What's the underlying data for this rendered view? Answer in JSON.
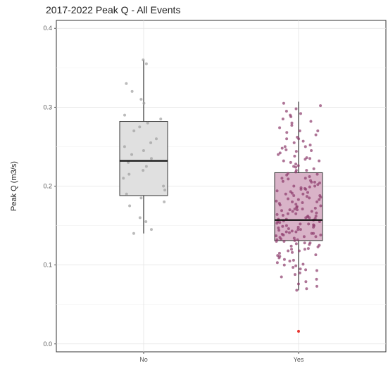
{
  "chart_data": {
    "type": "box",
    "title": "2017-2022 Peak Q - All Events",
    "xlabel": "",
    "ylabel": "Peak Q (m3/s)",
    "ylim": [
      -0.01,
      0.41
    ],
    "y_ticks": [
      0.0,
      0.1,
      0.2,
      0.3,
      0.4
    ],
    "y_tick_labels": [
      "0.0",
      "0.1",
      "0.2",
      "0.3",
      "0.4"
    ],
    "categories": [
      "No",
      "Yes"
    ],
    "grid": true,
    "legend": "none",
    "boxes": [
      {
        "category": "No",
        "whisker_low": 0.14,
        "q1": 0.188,
        "median": 0.232,
        "q3": 0.282,
        "whisker_high": 0.36,
        "fill": "#e0e0e0",
        "point_color": "#9e9e9e",
        "points": [
          0.36,
          0.355,
          0.33,
          0.32,
          0.31,
          0.305,
          0.29,
          0.285,
          0.28,
          0.275,
          0.27,
          0.26,
          0.255,
          0.25,
          0.245,
          0.24,
          0.235,
          0.23,
          0.225,
          0.22,
          0.215,
          0.21,
          0.2,
          0.195,
          0.19,
          0.185,
          0.18,
          0.175,
          0.16,
          0.155,
          0.145,
          0.14
        ]
      },
      {
        "category": "Yes",
        "whisker_low": 0.068,
        "q1": 0.131,
        "median": 0.157,
        "q3": 0.217,
        "whisker_high": 0.307,
        "fill": "#d9b3c8",
        "point_color": "#8b3a6b",
        "outliers": [
          0.016
        ],
        "outlier_color": "#e8352f",
        "points": [
          0.305,
          0.302,
          0.298,
          0.295,
          0.292,
          0.288,
          0.285,
          0.282,
          0.28,
          0.277,
          0.274,
          0.27,
          0.268,
          0.265,
          0.262,
          0.26,
          0.257,
          0.255,
          0.252,
          0.25,
          0.248,
          0.246,
          0.244,
          0.242,
          0.24,
          0.238,
          0.236,
          0.234,
          0.232,
          0.23,
          0.228,
          0.226,
          0.224,
          0.222,
          0.22,
          0.218,
          0.216,
          0.214,
          0.212,
          0.21,
          0.209,
          0.207,
          0.205,
          0.204,
          0.202,
          0.2,
          0.199,
          0.197,
          0.196,
          0.194,
          0.193,
          0.191,
          0.19,
          0.188,
          0.187,
          0.185,
          0.184,
          0.183,
          0.181,
          0.18,
          0.179,
          0.177,
          0.176,
          0.175,
          0.173,
          0.172,
          0.171,
          0.17,
          0.169,
          0.168,
          0.166,
          0.165,
          0.164,
          0.163,
          0.162,
          0.161,
          0.16,
          0.159,
          0.158,
          0.157,
          0.156,
          0.155,
          0.154,
          0.153,
          0.152,
          0.151,
          0.15,
          0.149,
          0.148,
          0.147,
          0.146,
          0.145,
          0.144,
          0.143,
          0.142,
          0.141,
          0.14,
          0.139,
          0.138,
          0.137,
          0.136,
          0.135,
          0.134,
          0.133,
          0.132,
          0.131,
          0.13,
          0.128,
          0.127,
          0.126,
          0.124,
          0.123,
          0.121,
          0.12,
          0.118,
          0.116,
          0.115,
          0.113,
          0.111,
          0.109,
          0.107,
          0.105,
          0.103,
          0.101,
          0.099,
          0.097,
          0.095,
          0.093,
          0.09,
          0.088,
          0.085,
          0.082,
          0.079,
          0.076,
          0.073,
          0.07,
          0.068,
          0.155,
          0.162,
          0.171,
          0.183,
          0.192,
          0.205,
          0.215,
          0.145,
          0.138,
          0.128,
          0.148,
          0.165,
          0.178,
          0.188,
          0.198,
          0.21,
          0.225,
          0.235,
          0.245,
          0.26,
          0.142,
          0.136,
          0.152,
          0.158,
          0.168,
          0.174,
          0.186,
          0.196,
          0.206,
          0.22,
          0.232,
          0.25,
          0.27,
          0.29,
          0.132,
          0.125,
          0.118,
          0.112,
          0.106,
          0.1,
          0.094,
          0.15,
          0.16,
          0.17,
          0.18,
          0.19,
          0.2,
          0.14,
          0.13,
          0.12
        ]
      }
    ]
  }
}
